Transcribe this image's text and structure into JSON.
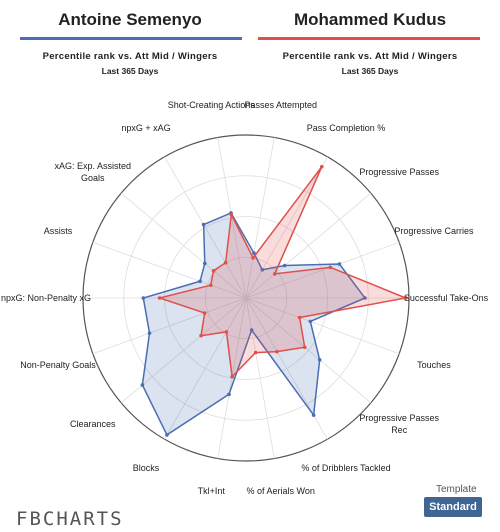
{
  "chart_data": {
    "type": "radar",
    "subtitle": "Percentile rank vs. Att Mid / Wingers",
    "period": "Last 365 Days",
    "categories": [
      "Passes Attempted",
      "Pass Completion %",
      "Progressive Passes",
      "Progressive Carries",
      "Successful Take-Ons",
      "Touches",
      "Progressive Passes Rec",
      "% of Dribblers Tackled",
      "% of Aerials Won",
      "Tkl+Int",
      "Blocks",
      "Clearances",
      "Non-Penalty Goals",
      "npxG: Non-Penalty xG",
      "Assists",
      "xAG: Exp. Assisted Goals",
      "npxG + xAG",
      "Shot-Creating Actions"
    ],
    "series": [
      {
        "name": "Antoine Semenyo",
        "color": "#4a6db3",
        "values": [
          28,
          20,
          31,
          61,
          73,
          42,
          59,
          83,
          20,
          60,
          97,
          83,
          63,
          63,
          30,
          33,
          52,
          53
        ]
      },
      {
        "name": "Mohammed Kudus",
        "color": "#e0504a",
        "values": [
          25,
          93,
          23,
          55,
          98,
          35,
          47,
          38,
          34,
          49,
          24,
          36,
          27,
          53,
          23,
          26,
          25,
          52
        ]
      }
    ],
    "rlim": [
      0,
      100
    ],
    "rticks": [
      25,
      50,
      75,
      100
    ]
  },
  "ui": {
    "logo": "FBCHARTS",
    "template_label": "Template",
    "template_button": "Standard"
  }
}
